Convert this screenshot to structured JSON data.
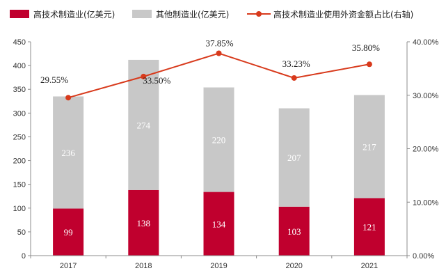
{
  "chart_data": {
    "type": "bar",
    "categories": [
      "2017",
      "2018",
      "2019",
      "2020",
      "2021"
    ],
    "series": [
      {
        "name": "高技术制造业(亿美元)",
        "type": "stacked-bar",
        "color": "#c0002e",
        "label_color": "#ffffff",
        "values": [
          99,
          138,
          134,
          103,
          121
        ],
        "labels": [
          "99",
          "138",
          "134",
          "103",
          "121"
        ]
      },
      {
        "name": "其他制造业(亿美元)",
        "type": "stacked-bar",
        "color": "#c8c8c8",
        "label_color": "#ffffff",
        "values": [
          236,
          274,
          220,
          207,
          217
        ],
        "labels": [
          "236",
          "274",
          "220",
          "207",
          "217"
        ]
      },
      {
        "name": "高技术制造业使用外资金额占比(右轴)",
        "type": "line",
        "axis": "right",
        "color": "#d83a1c",
        "values": [
          29.55,
          33.5,
          37.85,
          33.23,
          35.8
        ],
        "labels": [
          "29.55%",
          "33.50%",
          "37.85%",
          "33.23%",
          "35.80%"
        ]
      }
    ],
    "ylim": [
      0,
      450
    ],
    "y_ticks": [
      "0",
      "50",
      "100",
      "150",
      "200",
      "250",
      "300",
      "350",
      "400",
      "450"
    ],
    "y2lim": [
      0,
      40
    ],
    "y2_ticks": [
      "0.00%",
      "10.00%",
      "20.00%",
      "30.00%",
      "40.00%"
    ],
    "legend_position": "top",
    "title": "",
    "xlabel": "",
    "ylabel": ""
  }
}
